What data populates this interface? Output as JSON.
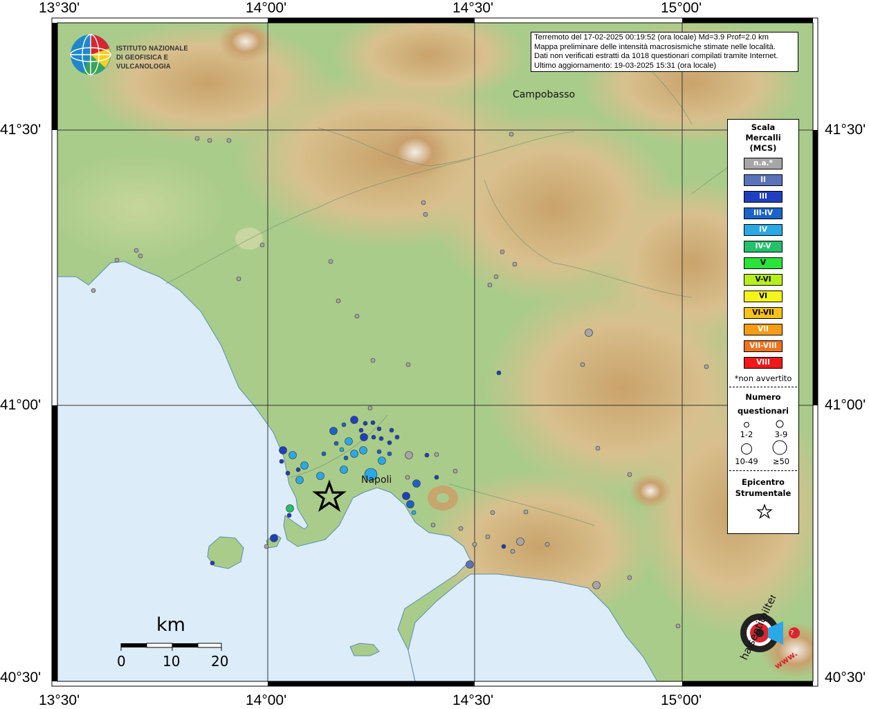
{
  "coords": {
    "top": [
      "13°30'",
      "14°00'",
      "14°30'",
      "15°00'"
    ],
    "bottom": [
      "13°30'",
      "14°00'",
      "14°30'",
      "15°00'"
    ],
    "left": [
      "41°30'",
      "41°00'",
      "40°30'"
    ],
    "right": [
      "41°30'",
      "41°00'",
      "40°30'"
    ]
  },
  "info": {
    "line1": "Terremoto del 17-02-2025 00:19:52 (ora locale) Md=3.9 Prof=2.0 km",
    "line2": "Mappa preliminare delle intensità macrosismiche stimate nelle località.",
    "line3": "Dati non verificati estratti da 1018 questionari compilati tramite Internet.",
    "line4": "Ultimo aggiornamento: 19-03-2025 15:31 (ora locale)"
  },
  "logo": {
    "line1": "ISTITUTO NAZIONALE",
    "line2": "DI GEOFISICA E VULCANOLOGIA"
  },
  "cities": {
    "campobasso": "Campobasso",
    "napoli": "Napoli"
  },
  "legend": {
    "title1": "Scala",
    "title2": "Mercalli",
    "title3": "(MCS)",
    "scale": [
      {
        "label": "n.a.*",
        "color": "#a6a6a6"
      },
      {
        "label": "II",
        "color": "#5a73b8"
      },
      {
        "label": "III",
        "color": "#1f3fbf"
      },
      {
        "label": "III-IV",
        "color": "#1a63c9"
      },
      {
        "label": "IV",
        "color": "#2aa9e6"
      },
      {
        "label": "IV-V",
        "color": "#24c06a"
      },
      {
        "label": "V",
        "color": "#2ae23a"
      },
      {
        "label": "V-VI",
        "color": "#b6ef1c"
      },
      {
        "label": "VI",
        "color": "#f5f51a"
      },
      {
        "label": "VI-VII",
        "color": "#f5c21a"
      },
      {
        "label": "VII",
        "color": "#f79c14"
      },
      {
        "label": "VII-VIII",
        "color": "#f0721a"
      },
      {
        "label": "VIII",
        "color": "#f01818"
      }
    ],
    "non_avvertito": "*non avvertito",
    "numero1": "Numero",
    "numero2": "questionari",
    "sizes": [
      "1-2",
      "3-9",
      "10-49",
      "≥50"
    ],
    "epicentro1": "Epicentro",
    "epicentro2": "Strumentale"
  },
  "scalebar": {
    "title": "km",
    "ticks": [
      "0",
      "10",
      "20"
    ]
  },
  "watermark": {
    "text": "haisentitoilterremoto.it",
    "url": "www."
  }
}
